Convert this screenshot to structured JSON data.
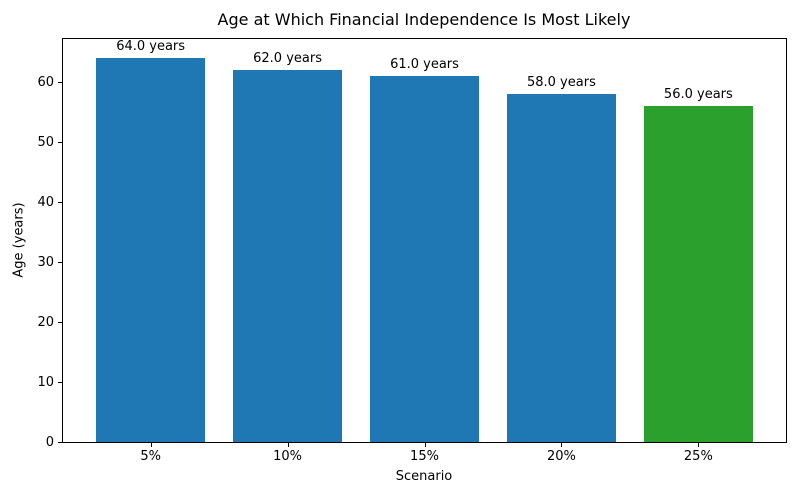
{
  "chart_data": {
    "type": "bar",
    "title": "Age at Which Financial Independence Is Most Likely",
    "xlabel": "Scenario",
    "ylabel": "Age (years)",
    "categories": [
      "5%",
      "10%",
      "15%",
      "20%",
      "25%"
    ],
    "values": [
      64.0,
      62.0,
      61.0,
      58.0,
      56.0
    ],
    "bar_labels": [
      "64.0 years",
      "62.0 years",
      "61.0 years",
      "58.0 years",
      "56.0 years"
    ],
    "bar_colors": [
      "#1f77b4",
      "#1f77b4",
      "#1f77b4",
      "#1f77b4",
      "#2ca02c"
    ],
    "ylim": [
      0,
      67.2
    ],
    "yticks": [
      0,
      10,
      20,
      30,
      40,
      50,
      60
    ],
    "grid": false,
    "legend_position": "none",
    "bar_width_fraction": 0.8,
    "x_margin_fraction": 0.05
  }
}
